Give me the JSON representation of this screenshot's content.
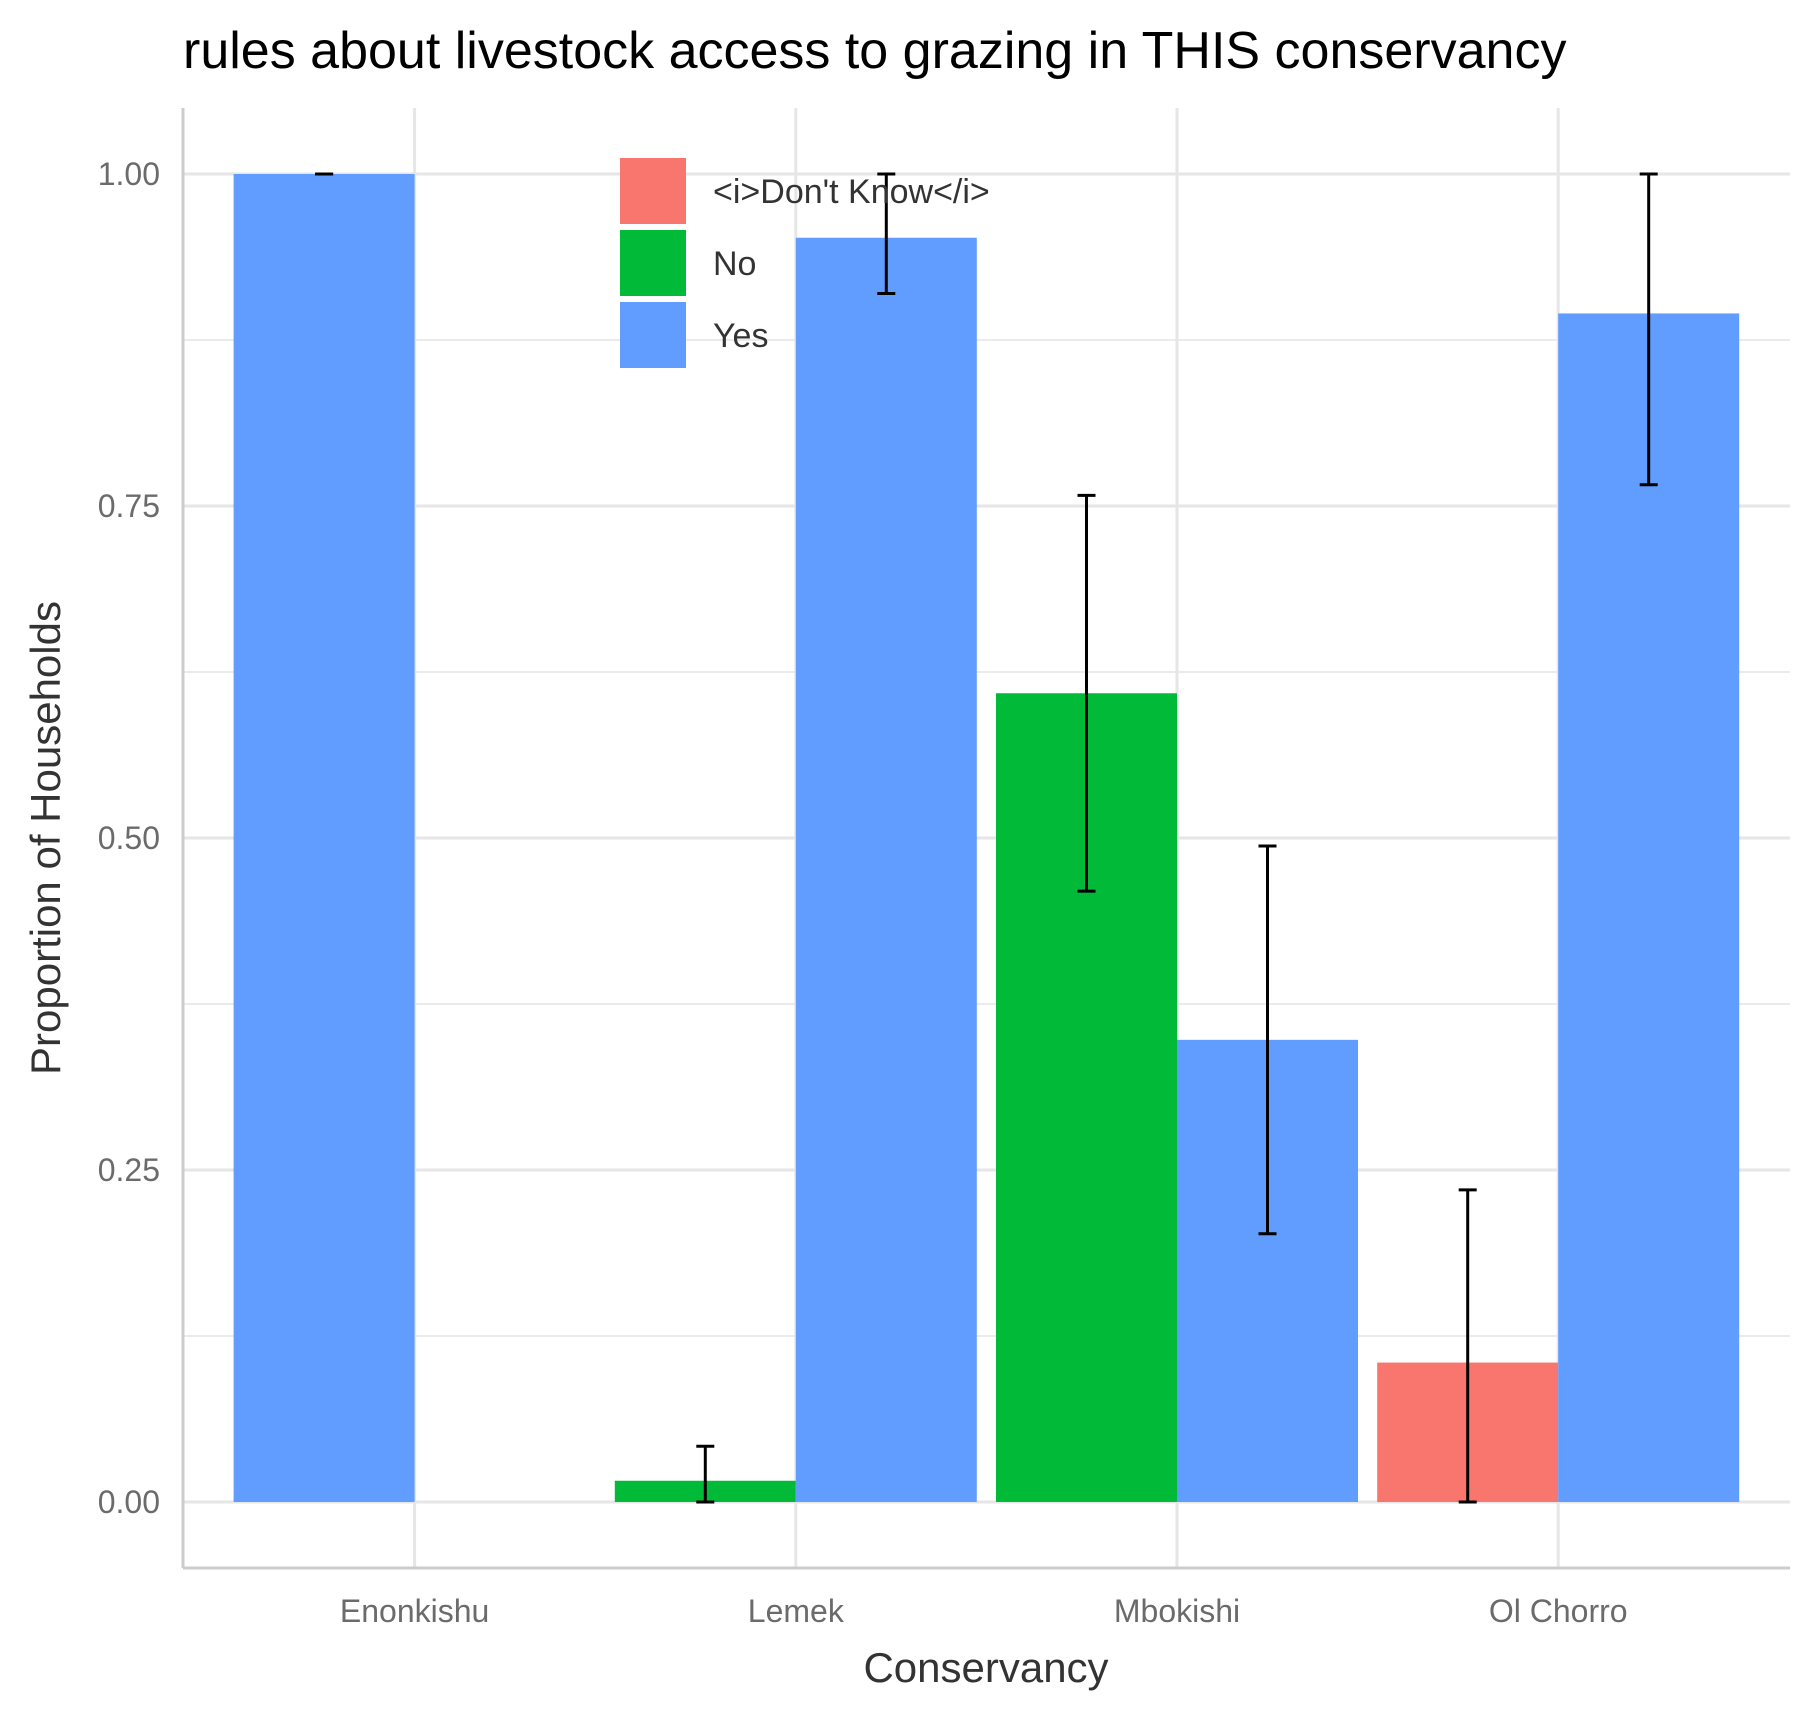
{
  "chart_data": {
    "type": "bar",
    "title": "rules about livestock access to grazing in THIS conservancy",
    "xlabel": "Conservancy",
    "ylabel": "Proportion of Households",
    "categories": [
      "Enonkishu",
      "Lemek",
      "Mbokishi",
      "Ol Chorro"
    ],
    "ylim": [
      -0.05,
      1.05
    ],
    "yticks": [
      "0.00",
      "0.25",
      "0.50",
      "0.75",
      "1.00"
    ],
    "grid": true,
    "legend_position": "top-center",
    "series": [
      {
        "name": "<i>Don't Know</i>",
        "color": "#F8766D",
        "values": [
          null,
          null,
          null,
          0.105
        ],
        "error_low": [
          null,
          null,
          null,
          0.0
        ],
        "error_high": [
          null,
          null,
          null,
          0.235
        ]
      },
      {
        "name": "No",
        "color": "#00BA38",
        "values": [
          null,
          0.016,
          0.609,
          null
        ],
        "error_low": [
          null,
          0.0,
          0.46,
          null
        ],
        "error_high": [
          null,
          0.042,
          0.758,
          null
        ]
      },
      {
        "name": "Yes",
        "color": "#619CFF",
        "values": [
          1.0,
          0.952,
          0.348,
          0.895
        ],
        "error_low": [
          1.0,
          0.91,
          0.202,
          0.766
        ],
        "error_high": [
          1.0,
          1.0,
          0.494,
          1.0
        ]
      }
    ]
  }
}
